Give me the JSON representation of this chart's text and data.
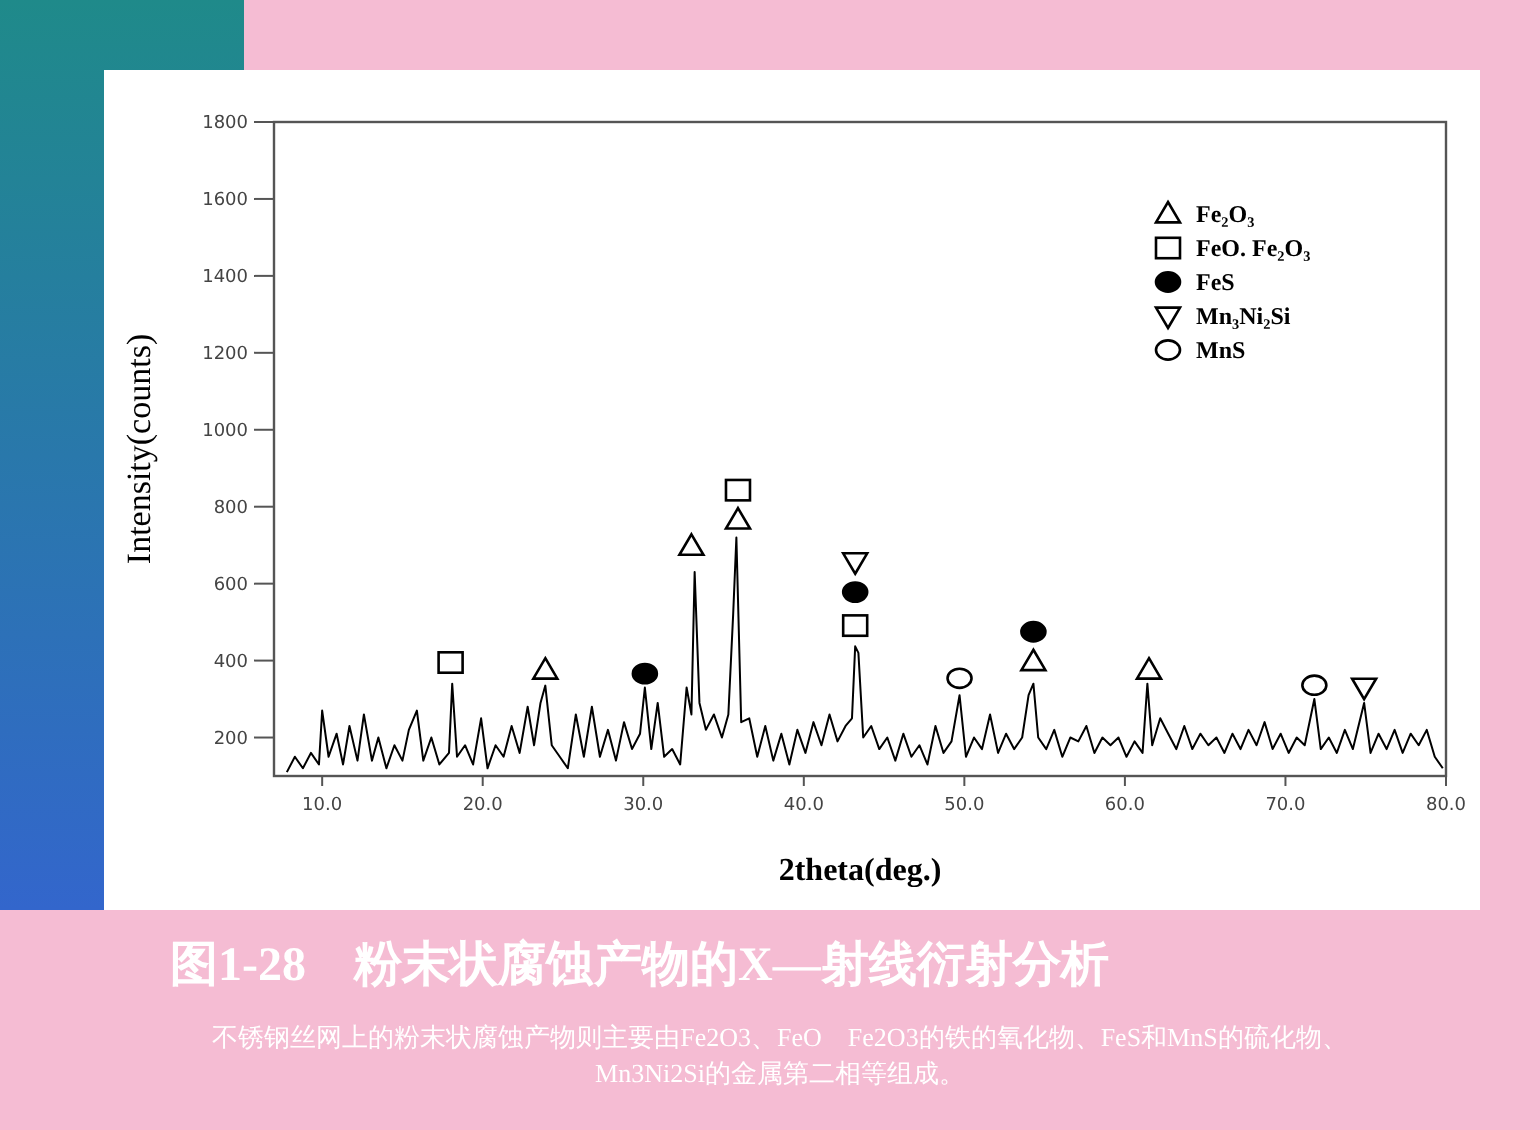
{
  "chart_data": {
    "type": "line",
    "title": "图1-28　粉末状腐蚀产物的X—射线衍射分析",
    "subtitle": "不锈钢丝网上的粉末状腐蚀产物则主要由Fe2O3、FeO　Fe2O3的铁的氧化物、FeS和MnS的硫化物、Mn3Ni2Si的金属第二相等组成。",
    "xlabel": "2theta(deg.)",
    "ylabel": "Intensity(counts)",
    "xlim": [
      7,
      80
    ],
    "ylim": [
      100,
      1800
    ],
    "xticks": [
      {
        "value": 10,
        "label": "10.0"
      },
      {
        "value": 20,
        "label": "20.0"
      },
      {
        "value": 30,
        "label": "30.0"
      },
      {
        "value": 40,
        "label": "40.0"
      },
      {
        "value": 50,
        "label": "50.0"
      },
      {
        "value": 60,
        "label": "60.0"
      },
      {
        "value": 70,
        "label": "70.0"
      },
      {
        "value": 80,
        "label": "80.0"
      }
    ],
    "yticks": [
      200,
      400,
      600,
      800,
      1000,
      1200,
      1400,
      1600,
      1800
    ],
    "legend": "top right",
    "series": [
      {
        "color": "#000000",
        "marker": "none",
        "x": [
          7.8,
          8.3,
          8.8,
          9.3,
          9.8,
          10.0,
          10.4,
          10.9,
          11.3,
          11.7,
          12.2,
          12.6,
          13.1,
          13.5,
          14.0,
          14.5,
          15.0,
          15.4,
          15.9,
          16.3,
          16.8,
          17.3,
          17.9,
          18.1,
          18.4,
          18.9,
          19.4,
          19.9,
          20.3,
          20.8,
          21.3,
          21.8,
          22.3,
          22.8,
          23.2,
          23.6,
          23.9,
          24.3,
          24.8,
          25.3,
          25.8,
          26.3,
          26.8,
          27.3,
          27.8,
          28.3,
          28.8,
          29.3,
          29.8,
          30.1,
          30.5,
          30.9,
          31.3,
          31.8,
          32.3,
          32.7,
          33.0,
          33.2,
          33.5,
          33.9,
          34.4,
          34.9,
          35.3,
          35.6,
          35.8,
          36.1,
          36.6,
          37.1,
          37.6,
          38.1,
          38.6,
          39.1,
          39.6,
          40.1,
          40.6,
          41.1,
          41.6,
          42.1,
          42.6,
          43.0,
          43.2,
          43.4,
          43.7,
          44.2,
          44.7,
          45.2,
          45.7,
          46.2,
          46.7,
          47.2,
          47.7,
          48.2,
          48.7,
          49.2,
          49.7,
          50.1,
          50.6,
          51.1,
          51.6,
          52.1,
          52.6,
          53.1,
          53.6,
          54.0,
          54.3,
          54.6,
          55.1,
          55.6,
          56.1,
          56.6,
          57.1,
          57.6,
          58.1,
          58.6,
          59.1,
          59.6,
          60.1,
          60.6,
          61.1,
          61.4,
          61.7,
          62.2,
          62.7,
          63.2,
          63.7,
          64.2,
          64.7,
          65.2,
          65.7,
          66.2,
          66.7,
          67.2,
          67.7,
          68.2,
          68.7,
          69.2,
          69.7,
          70.2,
          70.7,
          71.2,
          71.8,
          72.2,
          72.7,
          73.2,
          73.7,
          74.2,
          74.9,
          75.3,
          75.8,
          76.3,
          76.8,
          77.3,
          77.8,
          78.3,
          78.8,
          79.3,
          79.8
        ],
        "values": [
          110,
          150,
          120,
          160,
          130,
          270,
          150,
          210,
          130,
          230,
          140,
          260,
          140,
          200,
          120,
          180,
          140,
          220,
          270,
          140,
          200,
          130,
          160,
          340,
          150,
          180,
          130,
          250,
          120,
          180,
          150,
          230,
          160,
          280,
          180,
          290,
          335,
          180,
          150,
          120,
          260,
          150,
          280,
          150,
          220,
          140,
          240,
          170,
          210,
          330,
          170,
          290,
          150,
          170,
          130,
          330,
          260,
          630,
          290,
          220,
          260,
          200,
          260,
          520,
          720,
          240,
          250,
          150,
          230,
          140,
          210,
          130,
          220,
          160,
          240,
          180,
          260,
          190,
          230,
          250,
          437,
          420,
          200,
          230,
          170,
          200,
          140,
          210,
          150,
          180,
          130,
          230,
          160,
          190,
          310,
          150,
          200,
          170,
          260,
          160,
          210,
          170,
          200,
          310,
          340,
          200,
          170,
          220,
          150,
          200,
          190,
          230,
          160,
          200,
          180,
          200,
          150,
          190,
          160,
          340,
          180,
          250,
          210,
          170,
          230,
          170,
          210,
          180,
          200,
          160,
          210,
          170,
          220,
          180,
          240,
          170,
          210,
          160,
          200,
          180,
          300,
          170,
          200,
          160,
          220,
          170,
          290,
          160,
          210,
          170,
          220,
          160,
          210,
          180,
          220,
          150,
          120
        ]
      },
      {
        "type": "scatter",
        "name": "Fe₂O₃",
        "color": "#000000",
        "marker": "triangle-open",
        "x": [
          23.9,
          33.0,
          35.9,
          54.3,
          61.5
        ],
        "values": [
          375,
          697,
          765,
          397,
          375
        ]
      },
      {
        "type": "scatter",
        "name": "FeO. Fe₂O₃",
        "color": "#000000",
        "marker": "square-open",
        "x": [
          18.0,
          35.9,
          43.2
        ],
        "values": [
          395,
          843,
          491
        ]
      },
      {
        "type": "scatter",
        "name": "FeS",
        "color": "#000000",
        "marker": "circle",
        "x": [
          30.1,
          43.2,
          54.3
        ],
        "values": [
          366,
          578,
          475
        ]
      },
      {
        "type": "scatter",
        "name": "Mn₃Ni₂Si",
        "color": "#000000",
        "marker": "triangle-down-open",
        "x": [
          43.2,
          74.9
        ],
        "values": [
          657,
          331
        ]
      },
      {
        "type": "scatter",
        "name": "MnS",
        "color": "#000000",
        "marker": "circle-open",
        "x": [
          49.7,
          71.8
        ],
        "values": [
          354,
          336
        ]
      }
    ]
  }
}
